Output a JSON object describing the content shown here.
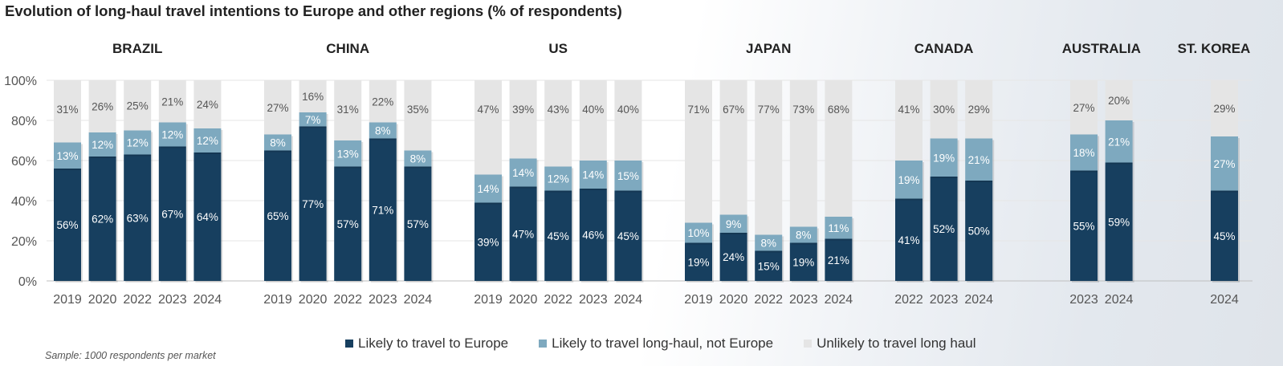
{
  "title": "Evolution of long-haul travel intentions to Europe and other regions (% of respondents)",
  "sample_note": "Sample: 1000 respondents per market",
  "colors": {
    "europe": "#173f5f",
    "longhaul": "#7ea9bf",
    "unlikely": "#e5e5e5"
  },
  "legend": [
    {
      "name": "Likely to travel to Europe",
      "color_key": "europe"
    },
    {
      "name": "Likely to travel long-haul, not Europe",
      "color_key": "longhaul"
    },
    {
      "name": "Unlikely to travel long haul",
      "color_key": "unlikely"
    }
  ],
  "chart_data": {
    "type": "bar",
    "stacked": true,
    "ylim": [
      0,
      100
    ],
    "yticks": [
      "0%",
      "20%",
      "40%",
      "60%",
      "80%",
      "100%"
    ],
    "grid": true,
    "legend_position": "bottom",
    "series_names": [
      "Likely to travel to Europe",
      "Likely to travel long-haul, not Europe",
      "Unlikely to travel long haul"
    ],
    "groups": [
      {
        "country": "BRAZIL",
        "bars": [
          {
            "year": "2019",
            "europe": 56,
            "longhaul": 13,
            "unlikely": 31
          },
          {
            "year": "2020",
            "europe": 62,
            "longhaul": 12,
            "unlikely": 26
          },
          {
            "year": "2022",
            "europe": 63,
            "longhaul": 12,
            "unlikely": 25
          },
          {
            "year": "2023",
            "europe": 67,
            "longhaul": 12,
            "unlikely": 21
          },
          {
            "year": "2024",
            "europe": 64,
            "longhaul": 12,
            "unlikely": 24
          }
        ]
      },
      {
        "country": "CHINA",
        "bars": [
          {
            "year": "2019",
            "europe": 65,
            "longhaul": 8,
            "unlikely": 27
          },
          {
            "year": "2020",
            "europe": 77,
            "longhaul": 7,
            "unlikely": 16
          },
          {
            "year": "2022",
            "europe": 57,
            "longhaul": 13,
            "unlikely": 31
          },
          {
            "year": "2023",
            "europe": 71,
            "longhaul": 8,
            "unlikely": 22
          },
          {
            "year": "2024",
            "europe": 57,
            "longhaul": 8,
            "unlikely": 35
          }
        ]
      },
      {
        "country": "US",
        "bars": [
          {
            "year": "2019",
            "europe": 39,
            "longhaul": 14,
            "unlikely": 47
          },
          {
            "year": "2020",
            "europe": 47,
            "longhaul": 14,
            "unlikely": 39
          },
          {
            "year": "2022",
            "europe": 45,
            "longhaul": 12,
            "unlikely": 43
          },
          {
            "year": "2023",
            "europe": 46,
            "longhaul": 14,
            "unlikely": 40
          },
          {
            "year": "2024",
            "europe": 45,
            "longhaul": 15,
            "unlikely": 40
          }
        ]
      },
      {
        "country": "JAPAN",
        "bars": [
          {
            "year": "2019",
            "europe": 19,
            "longhaul": 10,
            "unlikely": 71
          },
          {
            "year": "2020",
            "europe": 24,
            "longhaul": 9,
            "unlikely": 67
          },
          {
            "year": "2022",
            "europe": 15,
            "longhaul": 8,
            "unlikely": 77
          },
          {
            "year": "2023",
            "europe": 19,
            "longhaul": 8,
            "unlikely": 73
          },
          {
            "year": "2024",
            "europe": 21,
            "longhaul": 11,
            "unlikely": 68
          }
        ]
      },
      {
        "country": "CANADA",
        "bars": [
          {
            "year": "2022",
            "europe": 41,
            "longhaul": 19,
            "unlikely": 41
          },
          {
            "year": "2023",
            "europe": 52,
            "longhaul": 19,
            "unlikely": 30
          },
          {
            "year": "2024",
            "europe": 50,
            "longhaul": 21,
            "unlikely": 29
          }
        ]
      },
      {
        "country": "AUSTRALIA",
        "bars": [
          {
            "year": "2023",
            "europe": 55,
            "longhaul": 18,
            "unlikely": 27
          },
          {
            "year": "2024",
            "europe": 59,
            "longhaul": 21,
            "unlikely": 20
          }
        ]
      },
      {
        "country": "ST. KOREA",
        "bars": [
          {
            "year": "2024",
            "europe": 45,
            "longhaul": 27,
            "unlikely": 29
          }
        ]
      }
    ]
  }
}
